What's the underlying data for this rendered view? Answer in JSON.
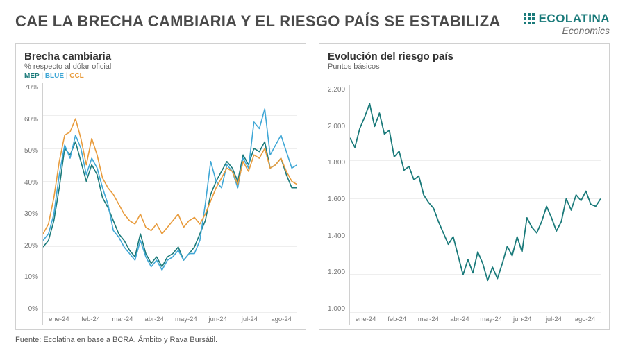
{
  "header": {
    "title": "CAE LA BRECHA CAMBIARIA Y EL RIESGO PAÍS SE ESTABILIZA",
    "brand_name": "ECOLATINA",
    "brand_sub": "Economics"
  },
  "source": "Fuente: Ecolatina en base a BCRA, Ámbito y Rava Bursátil.",
  "left_chart": {
    "type": "line",
    "title": "Brecha cambiaria",
    "subtitle": "% respecto al dólar oficial",
    "legend_items": [
      {
        "label": "MEP",
        "color": "#1a7a7a"
      },
      {
        "label": "BLUE",
        "color": "#3fa7d6"
      },
      {
        "label": "CCL",
        "color": "#e89b3c"
      }
    ],
    "legend_sep": " | ",
    "x_labels": [
      "ene-24",
      "feb-24",
      "mar-24",
      "abr-24",
      "may-24",
      "jun-24",
      "jul-24",
      "ago-24"
    ],
    "ylim": [
      0,
      70
    ],
    "ytick_step": 10,
    "y_suffix": "%",
    "background_color": "#ffffff",
    "grid_color": "#eeeeee",
    "line_width": 1.6,
    "series": {
      "MEP": [
        20,
        22,
        28,
        38,
        50,
        48,
        52,
        46,
        40,
        45,
        42,
        35,
        32,
        28,
        24,
        22,
        19,
        17,
        24,
        18,
        15,
        17,
        14,
        17,
        18,
        20,
        16,
        18,
        20,
        24,
        28,
        36,
        40,
        43,
        46,
        44,
        40,
        48,
        45,
        50,
        49,
        52,
        44,
        45,
        47,
        42,
        38,
        38
      ],
      "BLUE": [
        22,
        24,
        30,
        42,
        51,
        47,
        54,
        50,
        42,
        47,
        44,
        38,
        33,
        25,
        23,
        20,
        18,
        16,
        22,
        17,
        14,
        16,
        13,
        16,
        17,
        19,
        16,
        18,
        18,
        22,
        33,
        46,
        40,
        38,
        45,
        43,
        38,
        47,
        44,
        58,
        56,
        62,
        48,
        51,
        54,
        49,
        44,
        45
      ],
      "CCL": [
        24,
        27,
        35,
        46,
        54,
        55,
        59,
        53,
        45,
        53,
        48,
        41,
        38,
        36,
        33,
        30,
        28,
        27,
        30,
        26,
        25,
        27,
        24,
        26,
        28,
        30,
        26,
        28,
        29,
        27,
        30,
        34,
        38,
        41,
        44,
        43,
        39,
        46,
        43,
        48,
        47,
        50,
        44,
        45,
        47,
        43,
        40,
        39
      ]
    },
    "title_fontsize": 15,
    "label_fontsize": 10
  },
  "right_chart": {
    "type": "line",
    "title": "Evolución del riesgo país",
    "subtitle": "Puntos básicos",
    "x_labels": [
      "ene-24",
      "feb-24",
      "mar-24",
      "abr-24",
      "may-24",
      "jun-24",
      "jul-24",
      "ago-24"
    ],
    "ylim": [
      1000,
      2200
    ],
    "ytick_step": 200,
    "y_format": "thousand_dot",
    "background_color": "#ffffff",
    "grid_color": "#eeeeee",
    "line_width": 1.8,
    "series_color": "#1a7a7a",
    "series": [
      1920,
      1870,
      1970,
      2030,
      2100,
      1980,
      2050,
      1940,
      1960,
      1820,
      1850,
      1750,
      1770,
      1700,
      1720,
      1620,
      1580,
      1550,
      1480,
      1420,
      1360,
      1400,
      1300,
      1200,
      1280,
      1210,
      1320,
      1260,
      1170,
      1240,
      1180,
      1260,
      1350,
      1300,
      1400,
      1320,
      1500,
      1450,
      1420,
      1480,
      1560,
      1500,
      1430,
      1480,
      1600,
      1540,
      1620,
      1590,
      1640,
      1570,
      1560,
      1600
    ],
    "title_fontsize": 15,
    "label_fontsize": 10
  }
}
